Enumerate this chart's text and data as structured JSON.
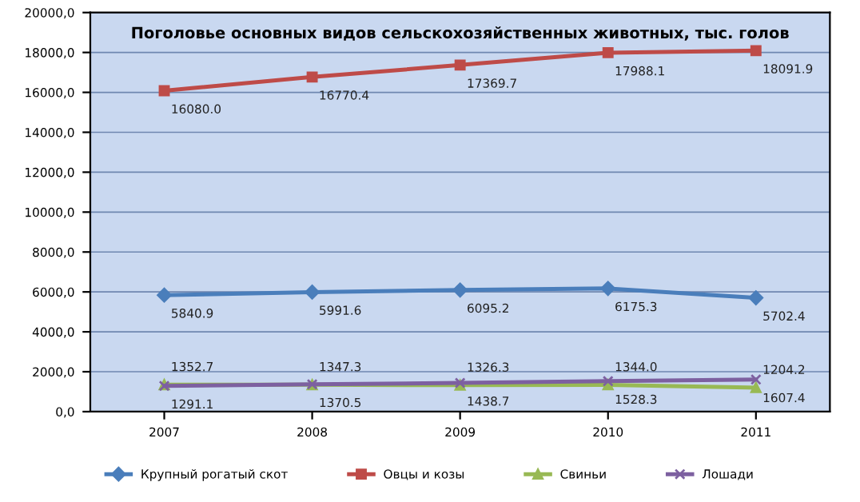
{
  "chart_data": {
    "type": "line",
    "title": "Поголовье основных видов сельскохозяйственных животных, тыс. голов",
    "categories": [
      "2007",
      "2008",
      "2009",
      "2010",
      "2011"
    ],
    "series": [
      {
        "name": "Крупный рогатый скот",
        "color": "#4a7ebb",
        "marker": "diamond",
        "values": [
          5840.9,
          5991.6,
          6095.2,
          6175.3,
          5702.4
        ],
        "value_labels": [
          "5840.9",
          "5991.6",
          "6095.2",
          "6175.3",
          "5702.4"
        ]
      },
      {
        "name": "Овцы и козы",
        "color": "#be4b48",
        "marker": "square",
        "values": [
          16080,
          16770.4,
          17369.7,
          17988.1,
          18091.9
        ],
        "value_labels": [
          "16080.0",
          "16770.4",
          "17369.7",
          "17988.1",
          "18091.9"
        ]
      },
      {
        "name": "Свиньи",
        "color": "#98b954",
        "marker": "triangle",
        "values": [
          1352.7,
          1347.3,
          1326.3,
          1344,
          1204.2
        ],
        "value_labels": [
          "1352.7",
          "1347.3",
          "1326.3",
          "1344.0",
          "1204.2"
        ]
      },
      {
        "name": "Лошади",
        "color": "#7d60a0",
        "marker": "cross",
        "values": [
          1291.1,
          1370.5,
          1438.7,
          1528.3,
          1607.4
        ],
        "value_labels": [
          "1291.1",
          "1370.5",
          "1438.7",
          "1528.3",
          "1607.4"
        ]
      }
    ],
    "ylim": [
      0,
      20000
    ],
    "yticks": [
      {
        "value": 0,
        "label": "0,0"
      },
      {
        "value": 2000,
        "label": "2000,0"
      },
      {
        "value": 4000,
        "label": "4000,0"
      },
      {
        "value": 6000,
        "label": "6000,0"
      },
      {
        "value": 8000,
        "label": "8000,0"
      },
      {
        "value": 10000,
        "label": "10000,0"
      },
      {
        "value": 12000,
        "label": "12000,0"
      },
      {
        "value": 14000,
        "label": "14000,0"
      },
      {
        "value": 16000,
        "label": "16000,0"
      },
      {
        "value": 18000,
        "label": "18000,0"
      },
      {
        "value": 20000,
        "label": "20000,0"
      }
    ],
    "grid": "y",
    "legend": "bottom",
    "line_style": "solid"
  }
}
